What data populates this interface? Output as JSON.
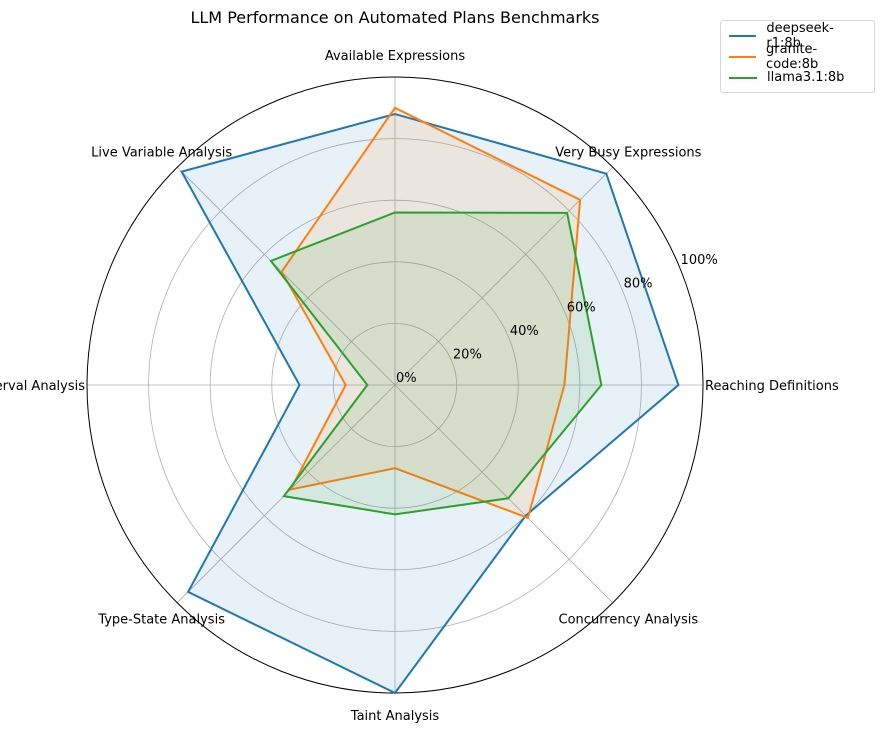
{
  "chart_data": {
    "type": "radar",
    "title": "LLM Performance on Automated Plans Benchmarks",
    "categories": [
      "Reaching Definitions",
      "Very Busy Expressions",
      "Available Expressions",
      "Live Variable Analysis",
      "Interval Analysis",
      "Type-State Analysis",
      "Taint Analysis",
      "Concurrency Analysis"
    ],
    "radial_ticks": [
      "0%",
      "20%",
      "40%",
      "60%",
      "80%",
      "100%"
    ],
    "radial_tick_values": [
      0,
      20,
      40,
      60,
      80,
      100
    ],
    "rlim": [
      0,
      100
    ],
    "grid": true,
    "legend_position": "top-right",
    "series": [
      {
        "name": "deepseek-r1:8b",
        "color": "#1f77b4",
        "values": [
          92,
          97,
          88,
          98,
          31,
          95,
          100,
          60
        ]
      },
      {
        "name": "granite-code:8b",
        "color": "#ff7f0e",
        "values": [
          55,
          85,
          90,
          52,
          16,
          48,
          27,
          61
        ]
      },
      {
        "name": "llama3.1:8b",
        "color": "#2ca02c",
        "values": [
          67,
          79,
          56,
          57,
          9,
          51,
          42,
          52
        ]
      }
    ]
  }
}
